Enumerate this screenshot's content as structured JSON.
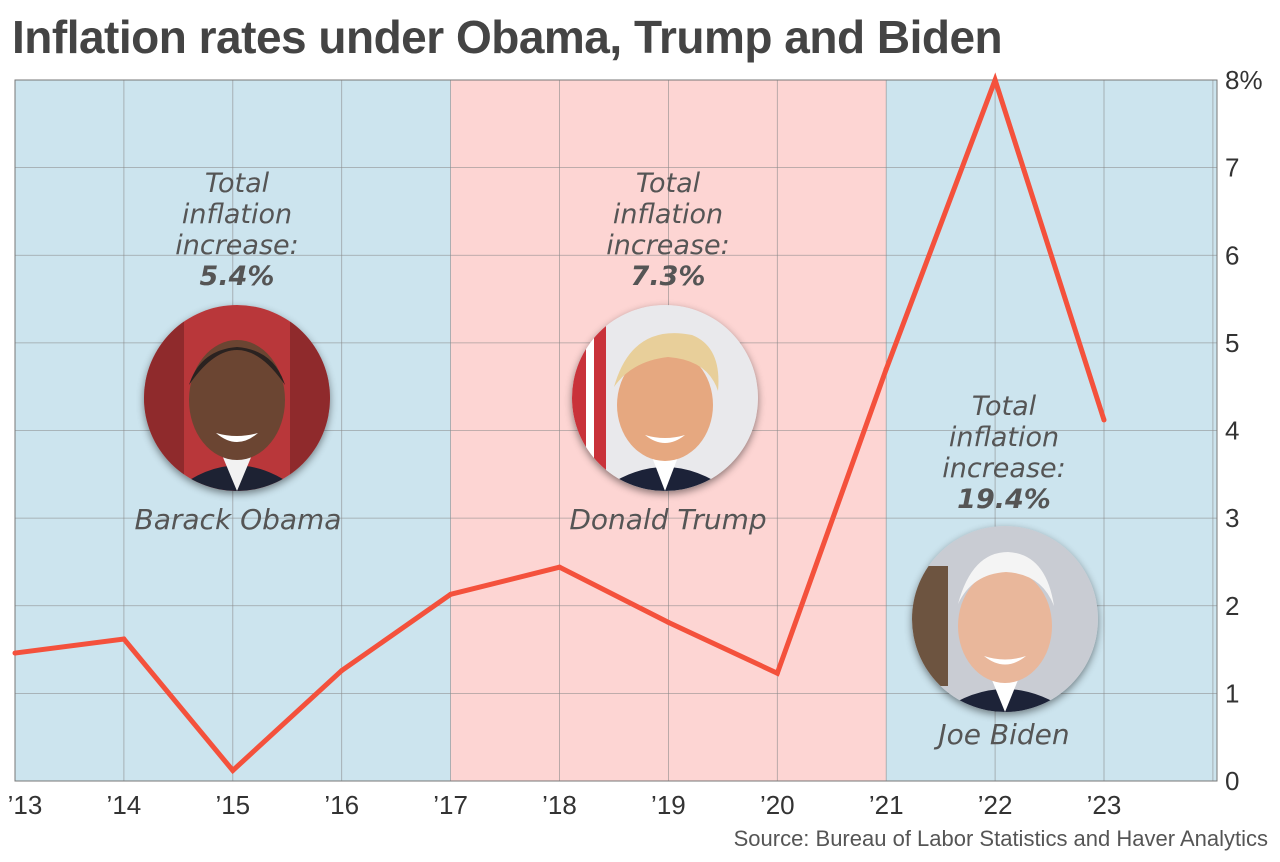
{
  "title": "Inflation rates under Obama, Trump and Biden",
  "source": "Source: Bureau of Labor Statistics and Haver Analytics",
  "colors": {
    "democrat_bg": "#cce4ee",
    "republican_bg": "#fdd5d3",
    "line": "#f4513c",
    "grid": "#888888"
  },
  "chart_data": {
    "type": "line",
    "title": "Inflation rates under Obama, Trump and Biden",
    "x": [
      "’13",
      "’14",
      "’15",
      "’16",
      "’17",
      "’18",
      "’19",
      "’20",
      "’21",
      "’22",
      "’23"
    ],
    "series": [
      {
        "values": [
          1.46,
          1.62,
          0.12,
          1.26,
          2.13,
          2.44,
          1.81,
          1.23,
          4.7,
          8.0,
          4.12
        ]
      }
    ],
    "y_ticks": [
      "0",
      "1",
      "2",
      "3",
      "4",
      "5",
      "6",
      "7",
      "8%"
    ],
    "ylim": [
      0,
      8
    ],
    "grid": true,
    "y_axis_side": "right",
    "shaded_periods": [
      {
        "from": "’13",
        "to": "’17",
        "president": "Barack Obama",
        "party": "democrat"
      },
      {
        "from": "’17",
        "to": "’21",
        "president": "Donald Trump",
        "party": "republican"
      },
      {
        "from": "’21",
        "to": "end",
        "president": "Joe Biden",
        "party": "democrat"
      }
    ]
  },
  "annotations": [
    {
      "name": "Barack Obama",
      "line1": "Total",
      "line2": "inflation",
      "line3": "increase:",
      "value": "5.4%",
      "portrait_icon": "obama-portrait-icon"
    },
    {
      "name": "Donald Trump",
      "line1": "Total",
      "line2": "inflation",
      "line3": "increase:",
      "value": "7.3%",
      "portrait_icon": "trump-portrait-icon"
    },
    {
      "name": "Joe Biden",
      "line1": "Total",
      "line2": "inflation",
      "line3": "increase:",
      "value": "19.4%",
      "portrait_icon": "biden-portrait-icon"
    }
  ]
}
